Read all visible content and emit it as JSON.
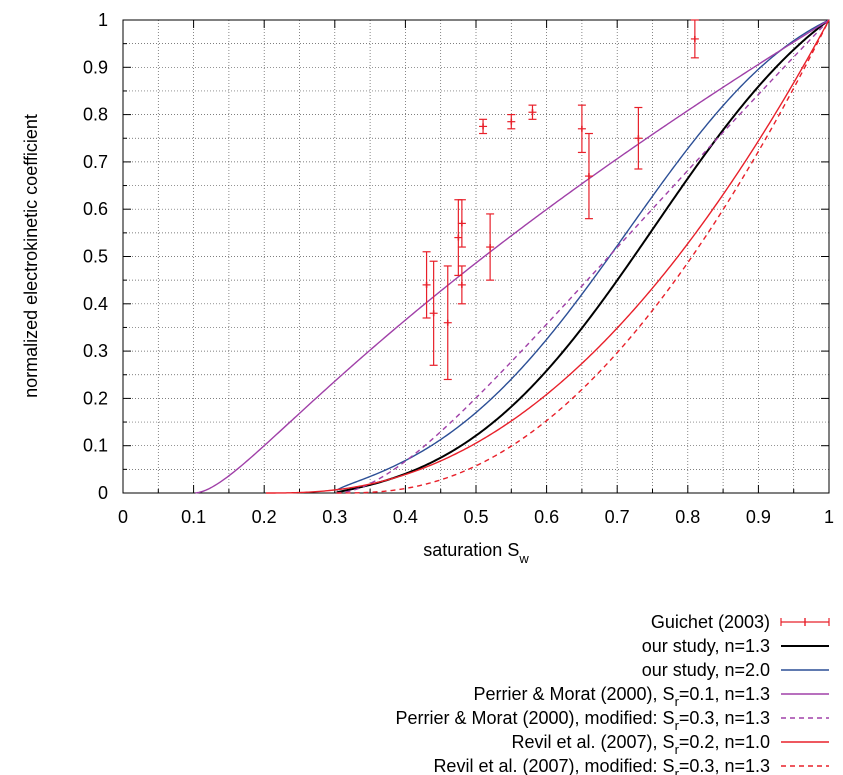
{
  "chart_data": {
    "type": "line",
    "xlabel": "saturation S",
    "xlabel_sub": "w",
    "ylabel": "normalized electrokinetic coefficient",
    "xlim": [
      0,
      1
    ],
    "ylim": [
      0,
      1
    ],
    "grid": true,
    "x_ticks": [
      "0",
      "0.1",
      "0.2",
      "0.3",
      "0.4",
      "0.5",
      "0.6",
      "0.7",
      "0.8",
      "0.9",
      "1"
    ],
    "y_ticks": [
      "0",
      "0.1",
      "0.2",
      "0.3",
      "0.4",
      "0.5",
      "0.6",
      "0.7",
      "0.8",
      "0.9",
      "1"
    ],
    "legend_position": "below",
    "series": [
      {
        "name": "Guichet (2003)",
        "style": "errorbars",
        "color": "#e8202a",
        "points": [
          {
            "x": 0.43,
            "y": 0.44,
            "err": 0.07
          },
          {
            "x": 0.44,
            "y": 0.38,
            "err": 0.11
          },
          {
            "x": 0.46,
            "y": 0.36,
            "err": 0.12
          },
          {
            "x": 0.475,
            "y": 0.54,
            "err": 0.08
          },
          {
            "x": 0.48,
            "y": 0.57,
            "err": 0.05
          },
          {
            "x": 0.48,
            "y": 0.44,
            "err": 0.04
          },
          {
            "x": 0.52,
            "y": 0.52,
            "err": 0.07
          },
          {
            "x": 0.51,
            "y": 0.775,
            "err": 0.015
          },
          {
            "x": 0.55,
            "y": 0.785,
            "err": 0.015
          },
          {
            "x": 0.58,
            "y": 0.805,
            "err": 0.015
          },
          {
            "x": 0.65,
            "y": 0.77,
            "err": 0.05
          },
          {
            "x": 0.66,
            "y": 0.67,
            "err": 0.09
          },
          {
            "x": 0.73,
            "y": 0.75,
            "err": 0.065
          },
          {
            "x": 0.81,
            "y": 0.96,
            "err": 0.04
          }
        ]
      },
      {
        "name": "our study, n=1.3",
        "color": "#000000",
        "dash": "",
        "model": "ours",
        "sr": 0.3,
        "n": 1.3
      },
      {
        "name": "our study, n=2.0",
        "color": "#2c4f96",
        "dash": "",
        "model": "ours",
        "sr": 0.3,
        "n": 2.0
      },
      {
        "name": "Perrier & Morat (2000), S",
        "sub": "r",
        "name_end": "=0.1, n=1.3",
        "color": "#a040a8",
        "dash": "",
        "model": "perrier",
        "sr": 0.1,
        "n": 1.3
      },
      {
        "name": "Perrier & Morat (2000), modified: S",
        "sub": "r",
        "name_end": "=0.3, n=1.3",
        "color": "#a040a8",
        "dash": "5,4",
        "model": "perrier",
        "sr": 0.3,
        "n": 1.3
      },
      {
        "name": "Revil et al. (2007), S",
        "sub": "r",
        "name_end": "=0.2, n=1.0",
        "color": "#e8202a",
        "dash": "",
        "model": "revil",
        "sr": 0.2,
        "n": 1.0
      },
      {
        "name": "Revil et al. (2007), modified: S",
        "sub": "r",
        "name_end": "=0.3, n=1.3",
        "color": "#e8202a",
        "dash": "5,4",
        "model": "revil",
        "sr": 0.3,
        "n": 1.3
      }
    ]
  }
}
